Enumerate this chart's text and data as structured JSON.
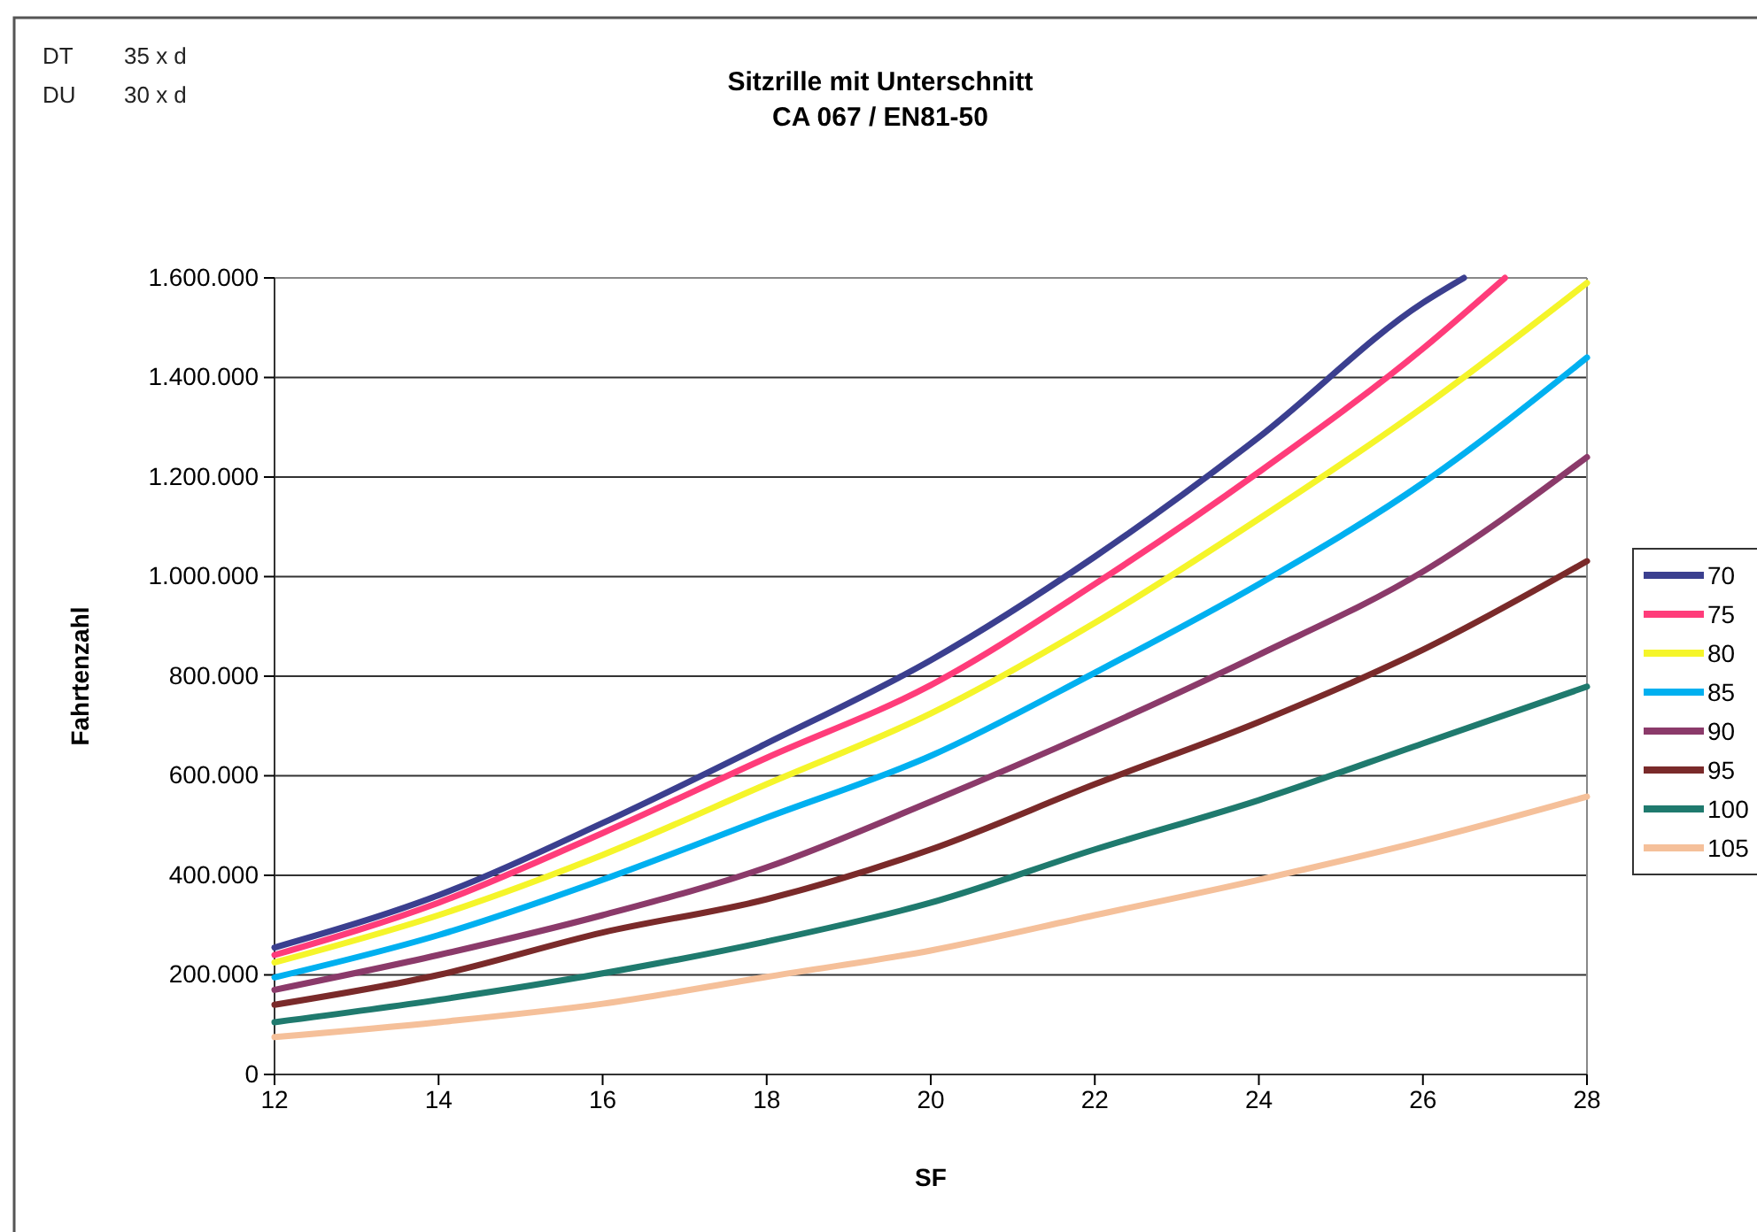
{
  "chart_data": {
    "type": "line",
    "title": "Sitzrille mit Unterschnitt",
    "subtitle": "CA 067 / EN81-50",
    "xlabel": "SF",
    "ylabel": "Fahrtenzahl",
    "annotations": [
      "DT    35 x d",
      "DU    30 x d"
    ],
    "x": [
      12,
      14,
      16,
      18,
      20,
      22,
      24,
      26,
      28
    ],
    "series": [
      {
        "name": "70",
        "color": "#3b3f8f",
        "x": [
          12,
          14,
          16,
          18,
          20,
          22,
          24,
          26,
          26.5
        ],
        "values": [
          255000,
          360000,
          505000,
          665000,
          832000,
          1040000,
          1280000,
          1550000,
          1600000
        ]
      },
      {
        "name": "75",
        "color": "#ff3c7a",
        "x": [
          12,
          14,
          16,
          18,
          20,
          22,
          24,
          26,
          27
        ],
        "values": [
          240000,
          345000,
          485000,
          636000,
          782000,
          985000,
          1210000,
          1458000,
          1600000
        ]
      },
      {
        "name": "80",
        "color": "#f5f52a",
        "values": [
          225000,
          320000,
          441000,
          583000,
          725000,
          907000,
          1116000,
          1340000,
          1590000
        ]
      },
      {
        "name": "85",
        "color": "#00b0f0",
        "values": [
          195000,
          280000,
          391000,
          516000,
          640000,
          807000,
          985000,
          1188000,
          1440000
        ]
      },
      {
        "name": "90",
        "color": "#8b3a6a",
        "values": [
          170000,
          240000,
          320000,
          416000,
          548000,
          690000,
          843000,
          1010000,
          1240000
        ]
      },
      {
        "name": "95",
        "color": "#7a2a2a",
        "values": [
          140000,
          200000,
          285000,
          352000,
          452000,
          583000,
          708000,
          853000,
          1031000
        ]
      },
      {
        "name": "100",
        "color": "#1f7a6e",
        "values": [
          105000,
          150000,
          203000,
          267000,
          345000,
          452000,
          551000,
          665000,
          779000
        ]
      },
      {
        "name": "105",
        "color": "#f5c09a",
        "values": [
          75000,
          105000,
          142000,
          196000,
          249000,
          320000,
          391000,
          469000,
          558000
        ]
      }
    ],
    "xlim": [
      12,
      28
    ],
    "xticks": [
      12,
      14,
      16,
      18,
      20,
      22,
      24,
      26,
      28
    ],
    "ylim": [
      0,
      1600000
    ],
    "yticks": [
      0,
      {
        "value": 200000,
        "label": "200.000"
      },
      {
        "value": 400000,
        "label": "400.000"
      },
      {
        "value": 600000,
        "label": "600.000"
      },
      {
        "value": 800000,
        "label": "800.000"
      },
      {
        "value": 1000000,
        "label": "1.000.000"
      },
      {
        "value": 1200000,
        "label": "1.200.000"
      },
      {
        "value": 1400000,
        "label": "1.400.000"
      },
      {
        "value": 1600000,
        "label": "1.600.000"
      }
    ],
    "grid": "y",
    "legend": "right",
    "marker": "none",
    "line_style": "solid"
  }
}
